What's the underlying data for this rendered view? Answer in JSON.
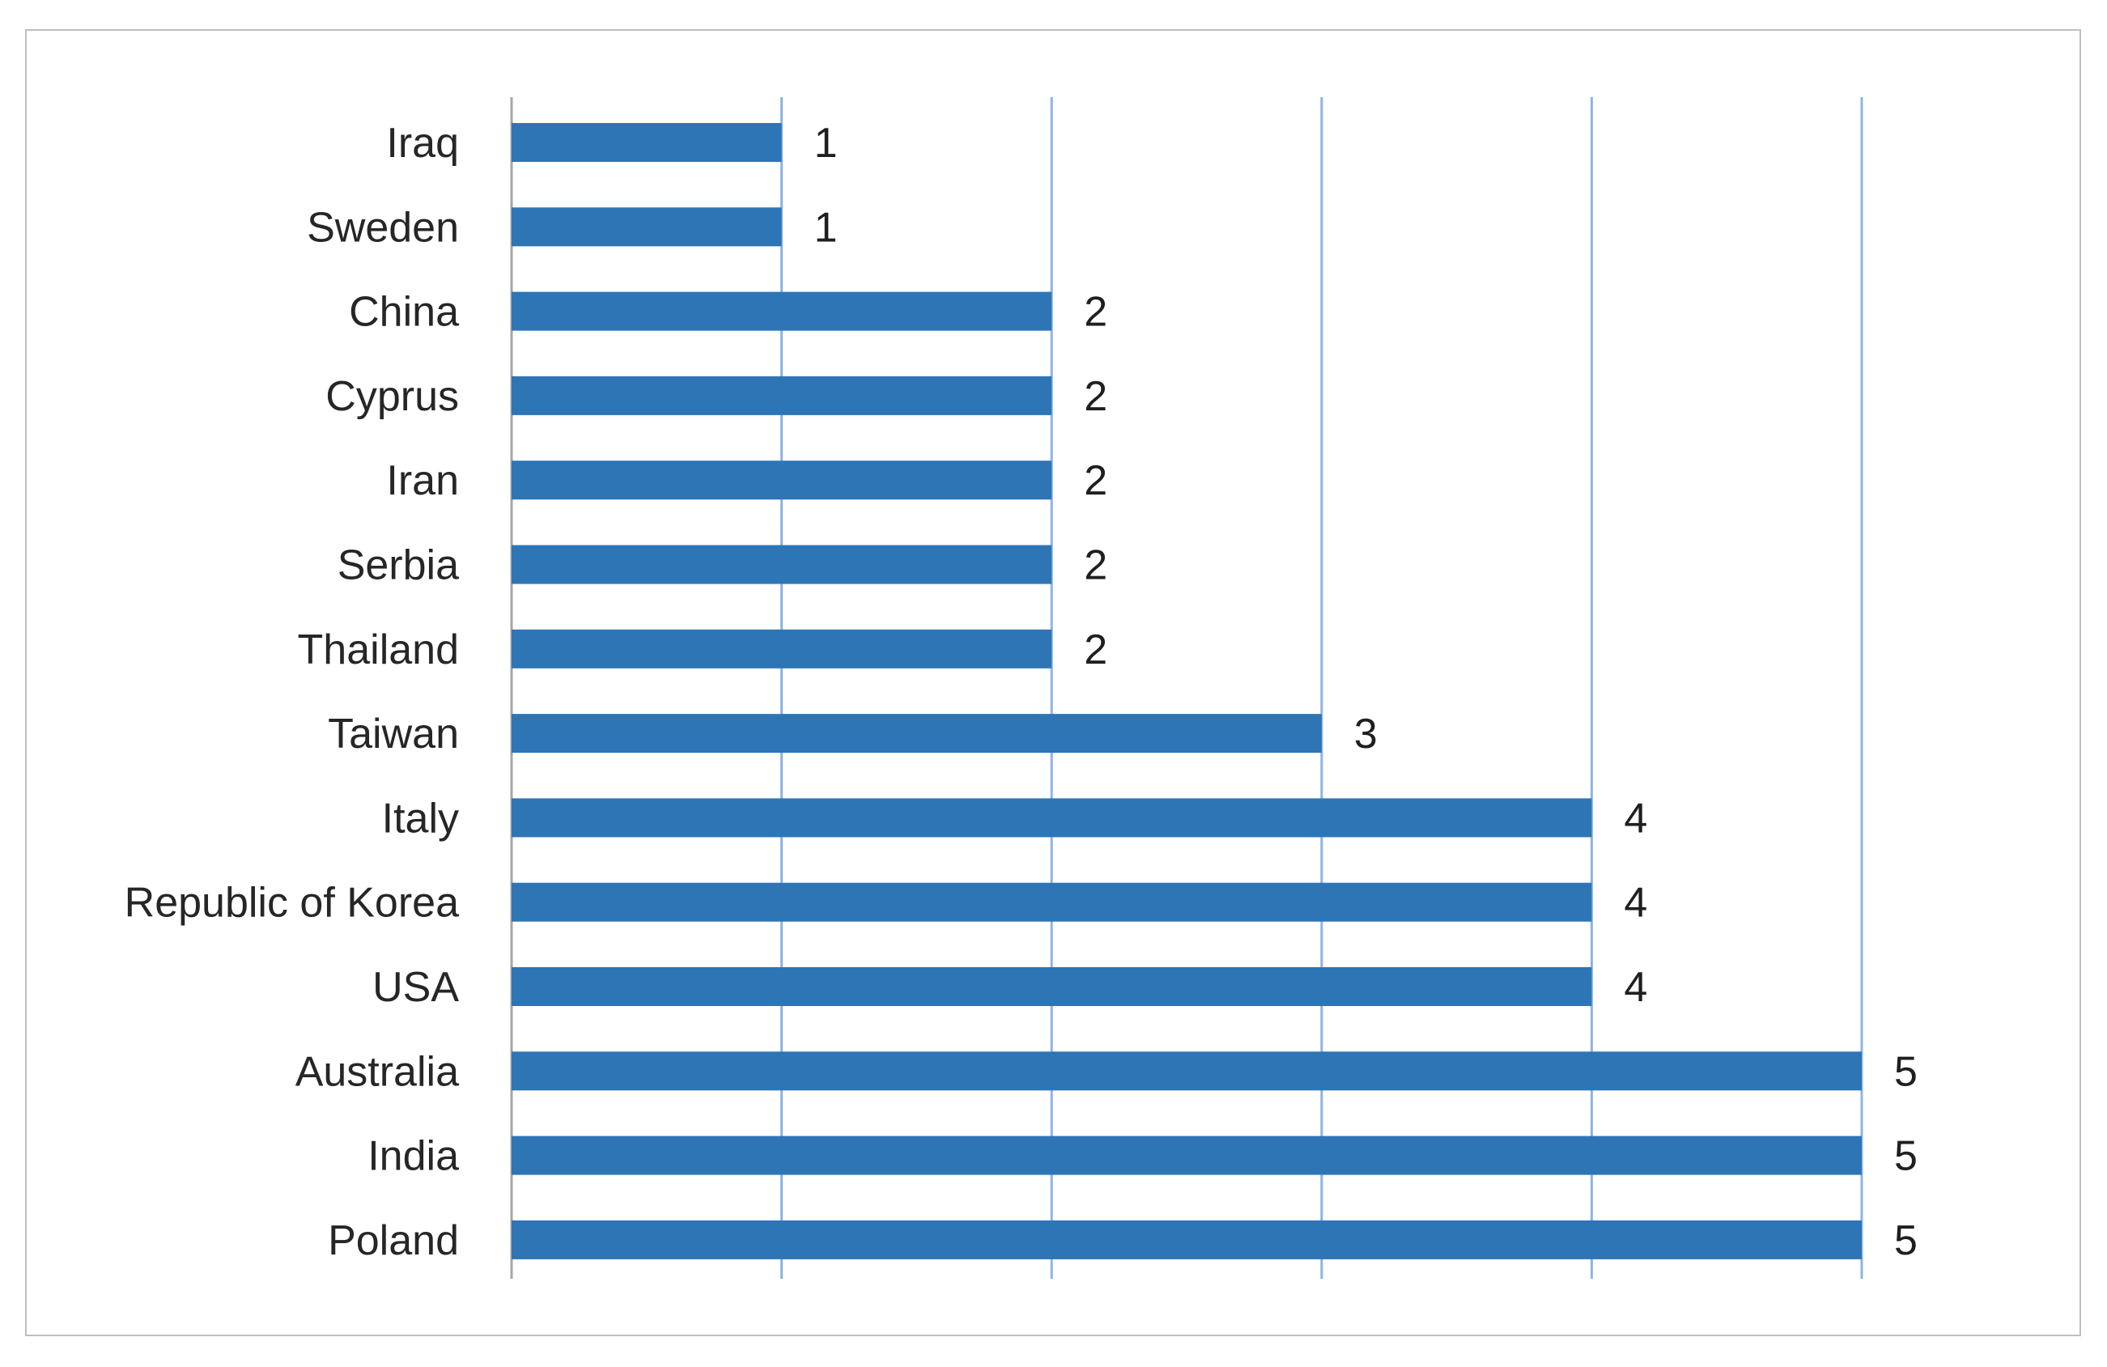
{
  "chart_data": {
    "type": "bar",
    "orientation": "horizontal",
    "title": "",
    "xlabel": "",
    "ylabel": "",
    "categories": [
      "Iraq",
      "Sweden",
      "China",
      "Cyprus",
      "Iran",
      "Serbia",
      "Thailand",
      "Taiwan",
      "Italy",
      "Republic of Korea",
      "USA",
      "Australia",
      "India",
      "Poland"
    ],
    "values": [
      1,
      1,
      2,
      2,
      2,
      2,
      2,
      3,
      4,
      4,
      4,
      5,
      5,
      5
    ],
    "data_labels": [
      "1",
      "1",
      "2",
      "2",
      "2",
      "2",
      "2",
      "3",
      "4",
      "4",
      "4",
      "5",
      "5",
      "5"
    ],
    "xlim": [
      0,
      5
    ],
    "x_tick_labels_shown": false,
    "grid": "vertical",
    "legend": "none",
    "colors": {
      "bar": "#2E75B6",
      "gridline": "#8DB4E2",
      "frame": "#BFBFBF"
    }
  }
}
